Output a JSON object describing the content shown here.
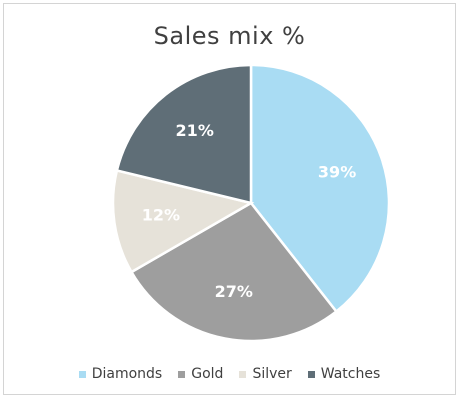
{
  "chart_data": {
    "type": "pie",
    "title": "Sales mix %",
    "categories": [
      "Diamonds",
      "Gold",
      "Silver",
      "Watches"
    ],
    "values": [
      39,
      27,
      12,
      21
    ],
    "labels": [
      "39%",
      "27%",
      "12%",
      "21%"
    ],
    "colors": [
      "#a9dcf3",
      "#9e9e9e",
      "#e6e2d9",
      "#5f6e77"
    ],
    "label_colors": [
      "#ffffff",
      "#ffffff",
      "#ffffff",
      "#ffffff"
    ],
    "legend_position": "bottom"
  }
}
